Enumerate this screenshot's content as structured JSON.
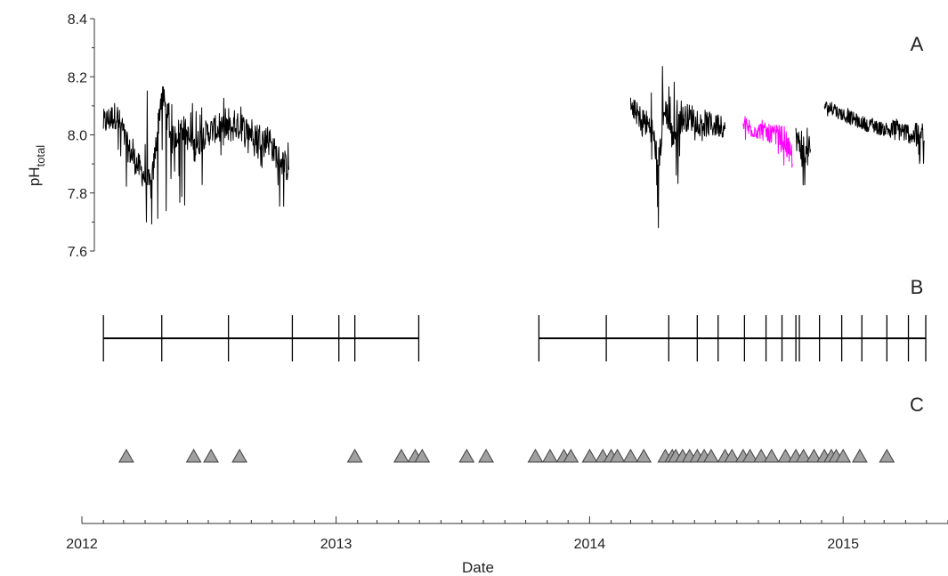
{
  "colors": {
    "series_black": "#000000",
    "series_magenta": "#ff00ff",
    "marker_fill": "#a0a0a0",
    "marker_stroke": "#404040",
    "axis": "#333333"
  },
  "chart_data": [
    {
      "panel": "A",
      "type": "line",
      "panel_label": "A",
      "ylabel": "pH",
      "ylabel_subscript": "total",
      "ylim": [
        7.6,
        8.4
      ],
      "yticks": [
        7.6,
        7.8,
        8.0,
        8.2,
        8.4
      ],
      "ytick_labels": [
        "7.6",
        "7.8",
        "8.0",
        "8.2",
        "8.4"
      ],
      "series": [
        {
          "color": "#000000",
          "segments": [
            {
              "x": [
                "2012-02-01",
                "2012-02-20",
                "2012-03-08",
                "2012-03-25",
                "2012-04-10",
                "2012-04-25",
                "2012-05-10",
                "2012-05-25",
                "2012-06-10",
                "2012-06-25",
                "2012-07-10",
                "2012-07-25",
                "2012-08-10",
                "2012-08-25",
                "2012-09-10",
                "2012-09-25",
                "2012-10-10",
                "2012-10-25"
              ],
              "y": [
                8.04,
                8.07,
                7.95,
                7.88,
                7.82,
                8.15,
                7.98,
                8.03,
                7.95,
                8.0,
                8.02,
                8.01,
                8.03,
                8.02,
                8.0,
                7.98,
                7.92,
                7.88
              ],
              "range_low": [
                7.9,
                7.92,
                7.76,
                7.72,
                7.6,
                7.66,
                7.76,
                7.74,
                7.62,
                7.82,
                7.9,
                7.92,
                7.95,
                7.93,
                7.9,
                7.86,
                7.74,
                7.76
              ],
              "range_high": [
                8.08,
                8.1,
                8.05,
                8.0,
                8.25,
                8.2,
                8.14,
                8.12,
                8.12,
                8.1,
                8.1,
                8.14,
                8.13,
                8.08,
                8.06,
                8.04,
                8.0,
                7.98
              ]
            },
            {
              "x": [
                "2014-03-01",
                "2014-03-15",
                "2014-04-01",
                "2014-04-10",
                "2014-04-20",
                "2014-05-01",
                "2014-05-10",
                "2014-05-20",
                "2014-06-01",
                "2014-06-15",
                "2014-07-01",
                "2014-07-15"
              ],
              "y": [
                8.1,
                8.06,
                8.02,
                7.9,
                8.1,
                7.98,
                8.05,
                8.06,
                8.06,
                8.04,
                8.03,
                8.02
              ],
              "range_low": [
                8.05,
                8.0,
                7.8,
                7.66,
                7.76,
                7.72,
                7.85,
                7.95,
                7.98,
                7.97,
                7.98,
                7.99
              ],
              "range_high": [
                8.13,
                8.11,
                8.18,
                8.34,
                8.24,
                8.22,
                8.18,
                8.12,
                8.1,
                8.09,
                8.08,
                8.06
              ]
            },
            {
              "x": [
                "2014-10-25",
                "2014-11-05",
                "2014-11-15"
              ],
              "y": [
                8.0,
                7.92,
                7.95
              ],
              "range_low": [
                7.93,
                7.8,
                7.83
              ],
              "range_high": [
                8.05,
                8.05,
                8.04
              ]
            },
            {
              "x": [
                "2014-12-05",
                "2015-01-01",
                "2015-01-20",
                "2015-02-10",
                "2015-03-01",
                "2015-03-20",
                "2015-04-10",
                "2015-04-28"
              ],
              "y": [
                8.1,
                8.07,
                8.05,
                8.03,
                8.02,
                8.02,
                8.0,
                7.98
              ],
              "range_low": [
                8.07,
                8.04,
                8.02,
                8.0,
                7.99,
                7.98,
                7.97,
                7.84
              ],
              "range_high": [
                8.12,
                8.1,
                8.08,
                8.06,
                8.05,
                8.08,
                8.05,
                8.04
              ]
            }
          ]
        },
        {
          "color": "#ff00ff",
          "segments": [
            {
              "x": [
                "2014-08-10",
                "2014-08-25",
                "2014-09-10",
                "2014-09-25",
                "2014-10-10",
                "2014-10-20"
              ],
              "y": [
                8.03,
                8.02,
                8.01,
                8.0,
                7.98,
                7.9
              ],
              "range_low": [
                7.98,
                7.98,
                7.97,
                7.96,
                7.88,
                7.72
              ],
              "range_high": [
                8.08,
                8.06,
                8.05,
                8.04,
                8.03,
                8.02
              ]
            }
          ]
        }
      ]
    },
    {
      "panel": "B",
      "type": "timeline",
      "panel_label": "B",
      "spans": [
        {
          "start": "2012-02-01",
          "end": "2013-04-30"
        },
        {
          "start": "2013-10-20",
          "end": "2015-04-30"
        }
      ],
      "events": [
        "2012-02-01",
        "2012-04-25",
        "2012-07-30",
        "2012-10-30",
        "2013-01-05",
        "2013-01-28",
        "2013-04-30",
        "2013-10-20",
        "2014-01-25",
        "2014-04-25",
        "2014-06-05",
        "2014-07-05",
        "2014-08-12",
        "2014-09-12",
        "2014-10-05",
        "2014-10-25",
        "2014-10-30",
        "2014-11-28",
        "2014-12-30",
        "2015-01-28",
        "2015-03-05",
        "2015-04-05",
        "2015-04-30"
      ]
    },
    {
      "panel": "C",
      "type": "scatter",
      "panel_label": "C",
      "marker": "triangle",
      "x": [
        "2012-03-05",
        "2012-06-10",
        "2012-07-05",
        "2012-08-15",
        "2013-01-28",
        "2013-04-05",
        "2013-04-25",
        "2013-05-05",
        "2013-07-08",
        "2013-08-05",
        "2013-10-15",
        "2013-11-05",
        "2013-11-25",
        "2013-12-05",
        "2014-01-01",
        "2014-01-20",
        "2014-02-01",
        "2014-02-10",
        "2014-03-01",
        "2014-03-20",
        "2014-04-20",
        "2014-04-30",
        "2014-05-05",
        "2014-05-15",
        "2014-05-25",
        "2014-06-05",
        "2014-06-15",
        "2014-06-25",
        "2014-07-15",
        "2014-07-25",
        "2014-08-10",
        "2014-08-20",
        "2014-09-05",
        "2014-09-20",
        "2014-10-10",
        "2014-10-25",
        "2014-11-05",
        "2014-11-20",
        "2014-12-05",
        "2014-12-15",
        "2014-12-22",
        "2015-01-01",
        "2015-01-25",
        "2015-03-05"
      ]
    }
  ],
  "x_axis": {
    "label": "Date",
    "range": [
      "2012-01-01",
      "2015-06-01"
    ],
    "major_ticks": [
      "2012-01-01",
      "2013-01-01",
      "2014-01-01",
      "2015-01-01"
    ],
    "major_labels": [
      "2012",
      "2013",
      "2014",
      "2015"
    ],
    "minor_tick_interval_months": 1
  }
}
